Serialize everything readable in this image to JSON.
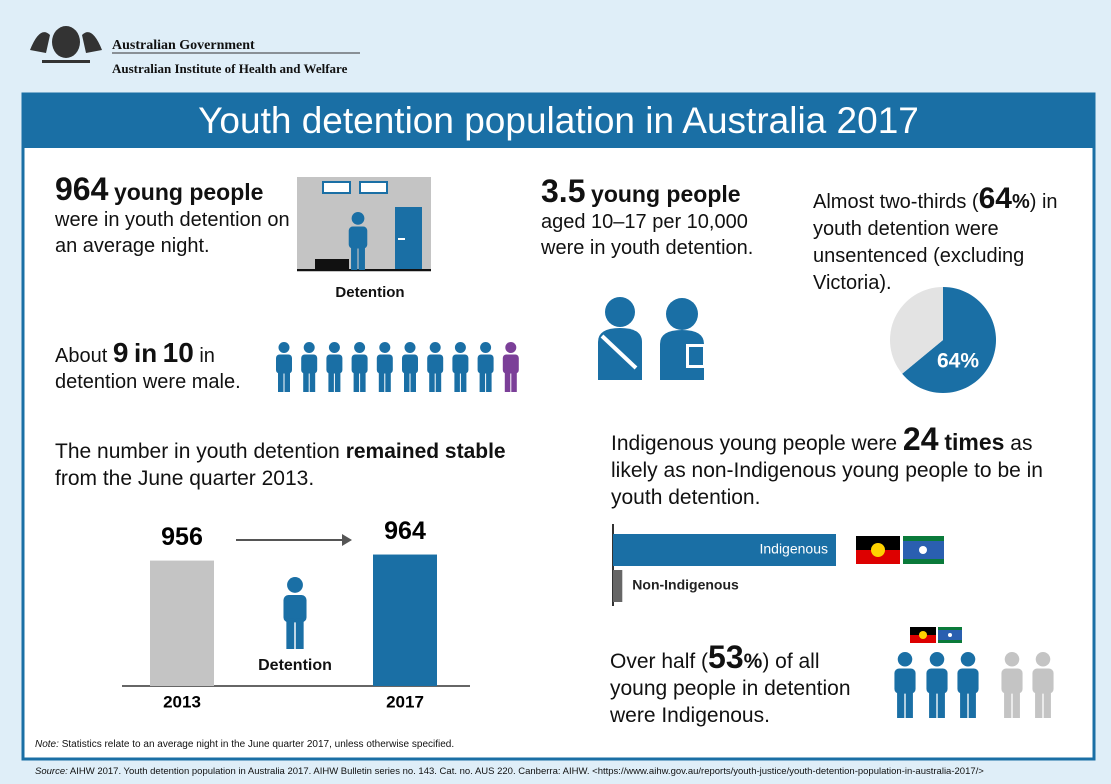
{
  "header": {
    "org1": "Australian Government",
    "org2": "Australian Institute of Health and Welfare"
  },
  "title": "Youth detention population in Australia 2017",
  "detention": {
    "number": "964",
    "unit": "young people",
    "text": "were in youth detention on an average night.",
    "image_label": "Detention"
  },
  "rate": {
    "number": "3.5",
    "unit": "young people",
    "text": "aged 10–17 per 10,000 were in youth detention."
  },
  "unsentenced": {
    "text1": "Almost two-thirds (",
    "pct_num": "64",
    "pct_sign": "%",
    "text2": ") in youth detention were unsentenced (excluding Victoria)."
  },
  "sex": {
    "pre": "About",
    "male": 9,
    "mid": "in",
    "total": 10,
    "post": "in",
    "line2": "detention were male."
  },
  "trend": {
    "text1": "The number in youth detention",
    "bold": "remained stable",
    "text2": "from the June quarter 2013.",
    "image_label": "Detention"
  },
  "indigenous": {
    "text1": "Indigenous young people were",
    "times_num": "24",
    "times_word": "times",
    "text2": "as likely as non-Indigenous young people to be in youth detention."
  },
  "half": {
    "text1": "Over half (",
    "pct_num": "53",
    "pct_sign": "%",
    "text2": ") of all young people in detention were Indigenous."
  },
  "note": {
    "label": "Note:",
    "text": "Statistics relate to an average night in the June quarter 2017, unless otherwise specified."
  },
  "source": {
    "label": "Source:",
    "text": "AIHW 2017. Youth detention population in Australia 2017. AIHW Bulletin series no. 143. Cat. no. AUS 220. Canberra: AIHW. <https://www.aihw.gov.au/reports/youth-justice/youth-detention-population-in-australia-2017/>"
  },
  "chart_data": [
    {
      "type": "bar",
      "categories": [
        "2013",
        "2017"
      ],
      "values": [
        956,
        964
      ],
      "colors": [
        "#c4c4c4",
        "#1a6fa5"
      ],
      "ylim": [
        790,
        970
      ]
    },
    {
      "type": "pie",
      "values": [
        64,
        36
      ],
      "value_labels": [
        "64%",
        null
      ],
      "colors": [
        "#1a6fa5",
        "#e3e3e3"
      ]
    },
    {
      "type": "hbar",
      "categories": [
        "Indigenous",
        "Non-Indigenous"
      ],
      "values": [
        24,
        1
      ],
      "colors": [
        "#1a6fa5",
        "#666666"
      ],
      "xlim": [
        0,
        24
      ]
    }
  ]
}
